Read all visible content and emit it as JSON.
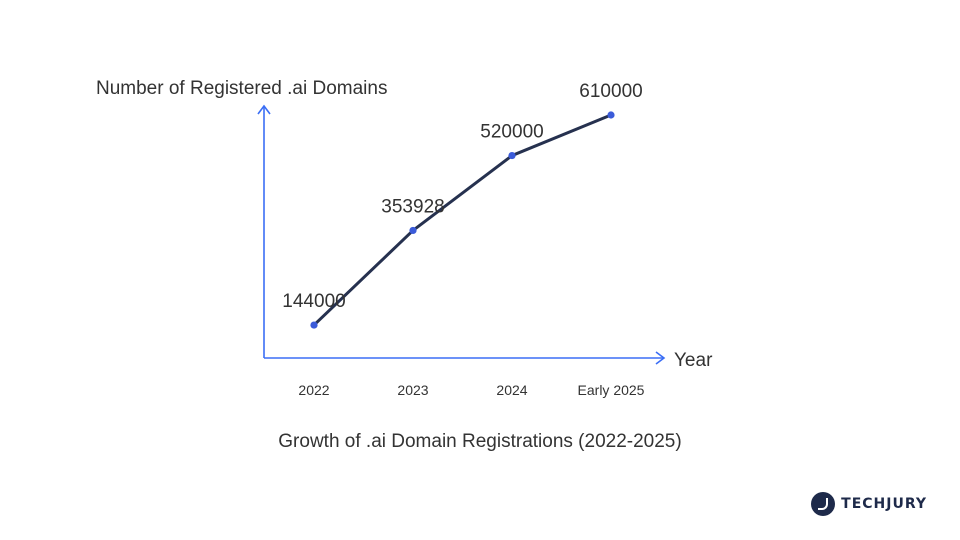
{
  "chart_data": {
    "type": "line",
    "categories": [
      "2022",
      "2023",
      "2024",
      "Early 2025"
    ],
    "series": [
      {
        "values": [
          144000,
          353928,
          520000,
          610000
        ]
      }
    ],
    "data_labels": [
      "144000",
      "353928",
      "520000",
      "610000"
    ],
    "title": "Growth of .ai Domain Registrations (2022-2025)",
    "xlabel": "Year",
    "ylabel": "Number of Registered .ai Domains",
    "ylim": [
      0,
      680000
    ],
    "grid": false,
    "legend": "none",
    "colors": {
      "axis": "#3b6ef5",
      "line": "#26314f",
      "marker": "#3b5bd9"
    }
  },
  "brand": {
    "name": "TECHJURY",
    "icon": "techjury-logo-icon"
  }
}
